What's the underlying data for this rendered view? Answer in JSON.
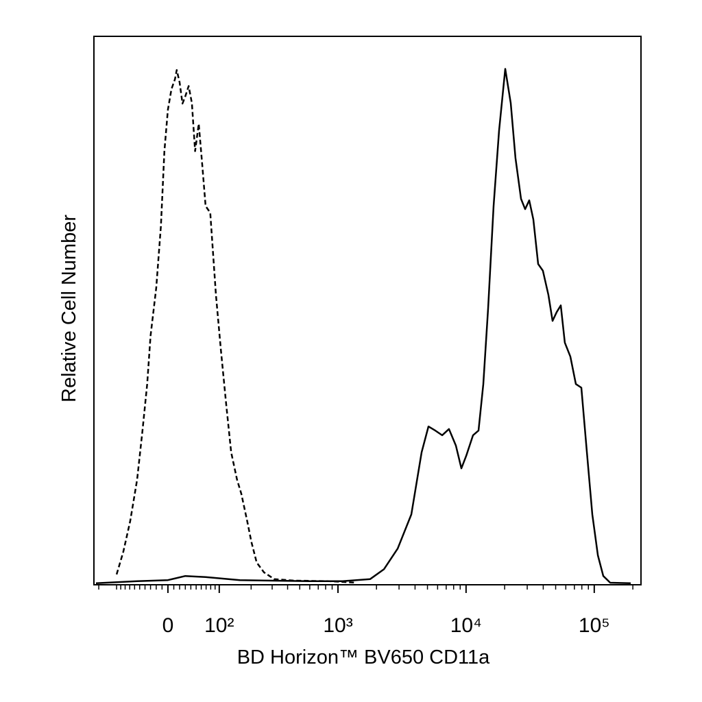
{
  "chart_data": {
    "type": "line",
    "x_axis_label": "BD Horizon™ BV650 CD11a",
    "y_axis_label": "Relative Cell Number",
    "xscale": "biexponential",
    "xlim": [
      -166,
      231500
    ],
    "ylim": [
      0,
      106
    ],
    "xticks": [
      0,
      {
        "value": 100,
        "label": "10²"
      },
      {
        "value": 1000,
        "label": "10³"
      },
      {
        "value": 10000,
        "label": "10⁴"
      },
      {
        "value": 100000,
        "label": "10⁵"
      }
    ],
    "xminorticks": [
      -150,
      -100,
      -90,
      -80,
      -70,
      -60,
      -50,
      -40,
      -30,
      -20,
      -10,
      10,
      20,
      30,
      40,
      50,
      60,
      70,
      80,
      90,
      200,
      300,
      400,
      500,
      600,
      700,
      800,
      900,
      2000,
      3000,
      4000,
      5000,
      6000,
      7000,
      8000,
      9000,
      20000,
      30000,
      40000,
      50000,
      60000,
      70000,
      80000,
      90000,
      200000
    ],
    "series": [
      {
        "color": "#000000",
        "line_style": "dashed",
        "x": [
          -100,
          -84,
          -69,
          -55,
          -45,
          -36,
          -30,
          -20,
          -12,
          -6,
          0,
          6,
          12,
          15,
          20,
          25,
          30,
          36,
          42,
          48,
          55,
          62,
          69,
          79,
          92,
          104,
          118,
          132,
          150,
          164,
          185,
          201,
          223,
          257,
          312,
          456,
          851,
          1400
        ],
        "values": [
          2.0,
          6.4,
          12.3,
          20.3,
          29.5,
          38.8,
          48.1,
          57.4,
          69.3,
          83.8,
          91.8,
          95.8,
          97.7,
          99.5,
          97.1,
          93.0,
          94.4,
          96.4,
          93.1,
          83.8,
          89.1,
          81.2,
          73.2,
          71.9,
          56.0,
          45.4,
          34.8,
          25.6,
          20.3,
          17.6,
          12.3,
          8.3,
          4.3,
          2.4,
          1.1,
          0.8,
          0.7,
          0.4
        ]
      },
      {
        "color": "#000000",
        "line_style": "solid",
        "x": [
          -159,
          -55,
          0,
          30,
          69,
          159,
          312,
          586,
          1090,
          1786,
          2287,
          2927,
          3742,
          4500,
          5090,
          5760,
          6510,
          7360,
          8330,
          9190,
          10020,
          11330,
          12510,
          13630,
          14860,
          16400,
          18090,
          20210,
          22300,
          24300,
          26820,
          28880,
          31090,
          33480,
          36490,
          39770,
          43890,
          47280,
          50940,
          54810,
          58970,
          65110,
          71910,
          79290,
          87600,
          96580,
          106700,
          117650,
          133150,
          192500
        ],
        "values": [
          0.3,
          0.7,
          0.9,
          1.7,
          1.5,
          0.9,
          0.8,
          0.7,
          0.7,
          1.1,
          3.0,
          7.0,
          13.6,
          25.6,
          30.6,
          29.8,
          28.9,
          30.1,
          26.9,
          22.5,
          24.9,
          28.9,
          29.8,
          38.8,
          53.4,
          73.2,
          87.8,
          99.7,
          93.1,
          82.5,
          74.6,
          72.6,
          74.3,
          70.6,
          62.0,
          60.7,
          56.0,
          51.0,
          52.7,
          54.0,
          46.8,
          44.1,
          38.8,
          38.1,
          25.6,
          13.6,
          5.7,
          1.7,
          0.4,
          0.3
        ]
      }
    ]
  }
}
